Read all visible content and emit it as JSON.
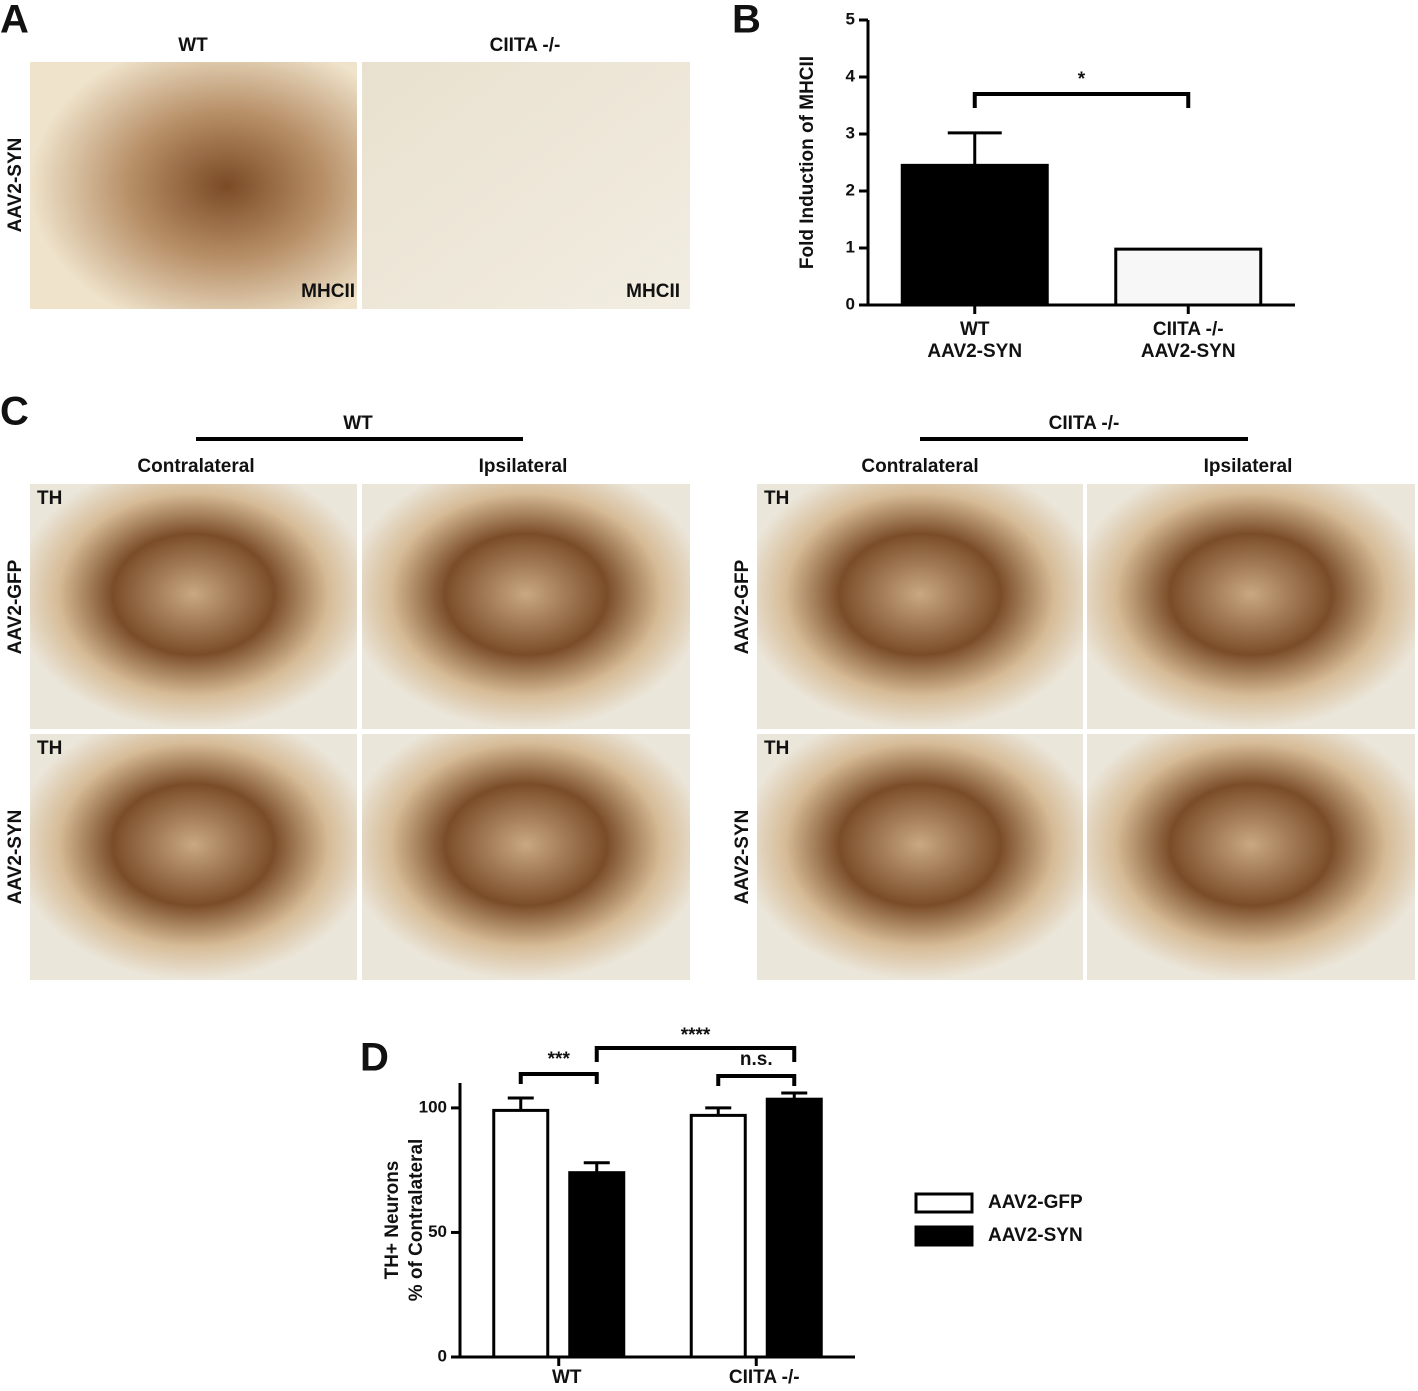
{
  "panels": {
    "labels": [
      "A",
      "B",
      "C",
      "D"
    ],
    "a": {
      "columns": [
        "WT",
        "CIITA -/-"
      ],
      "row": "AAV2-SYN",
      "stain": [
        "MHCII",
        "MHCII"
      ]
    },
    "c": {
      "groups": [
        "WT",
        "CIITA -/-"
      ],
      "sides": [
        "Contralateral",
        "Ipsilateral",
        "Contralateral",
        "Ipsilateral"
      ],
      "rows": [
        "AAV2-GFP",
        "AAV2-SYN",
        "AAV2-GFP",
        "AAV2-SYN"
      ],
      "stain": [
        "TH",
        "TH",
        "TH",
        "TH"
      ]
    }
  },
  "chart_data": [
    {
      "type": "bar",
      "ylabel": "Fold Induction of MHCII",
      "categories": [
        "WT\nAAV2-SYN",
        "CIITA -/-\nAAV2-SYN"
      ],
      "values": [
        2.45,
        0.98
      ],
      "errors": [
        0.57,
        0
      ],
      "colors": [
        "#000000",
        "#f7f7f7"
      ],
      "ylim": [
        0,
        5
      ],
      "yticks": [
        0,
        1,
        2,
        3,
        4,
        5
      ],
      "annotations": [
        "*"
      ]
    },
    {
      "type": "grouped-bar",
      "ylabel": "TH+ Neurons\n% of Contralateral",
      "categories": [
        "WT",
        "CIITA -/-"
      ],
      "series": [
        {
          "name": "AAV2-GFP",
          "color": "#ffffff",
          "values": [
            99,
            97
          ],
          "errors": [
            5,
            3
          ]
        },
        {
          "name": "AAV2-SYN",
          "color": "#000000",
          "values": [
            74,
            103.5
          ],
          "errors": [
            4,
            2.5
          ]
        }
      ],
      "ylim": [
        0,
        110
      ],
      "yticks": [
        0,
        50,
        100
      ],
      "annotations": [
        "***",
        "****",
        "n.s."
      ]
    }
  ]
}
